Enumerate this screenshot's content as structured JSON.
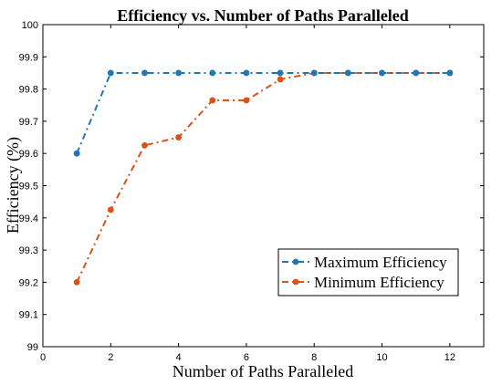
{
  "chart_data": {
    "type": "line",
    "title": "Efficiency vs. Number of Paths Paralleled",
    "xlabel": "Number of Paths Paralleled",
    "ylabel": "Efficiency (%)",
    "xlim": [
      0,
      13
    ],
    "ylim": [
      99,
      100
    ],
    "xticks": [
      0,
      2,
      4,
      6,
      8,
      10,
      12
    ],
    "yticks": [
      99,
      99.1,
      99.2,
      99.3,
      99.4,
      99.5,
      99.6,
      99.7,
      99.8,
      99.9,
      100
    ],
    "xtick_labels": [
      "0",
      "2",
      "4",
      "6",
      "8",
      "10",
      "12"
    ],
    "ytick_labels": [
      "99",
      "99.1",
      "99.2",
      "99.3",
      "99.4",
      "99.5",
      "99.6",
      "99.7",
      "99.8",
      "99.9",
      "100"
    ],
    "grid": false,
    "legend_position": "bottom-right",
    "x": [
      1,
      2,
      3,
      4,
      5,
      6,
      7,
      8,
      9,
      10,
      11,
      12
    ],
    "series": [
      {
        "name": "Maximum Efficiency",
        "color": "#1f77b4",
        "values": [
          99.6,
          99.85,
          99.85,
          99.85,
          99.85,
          99.85,
          99.85,
          99.85,
          99.85,
          99.85,
          99.85,
          99.85
        ]
      },
      {
        "name": "Minimum Efficiency",
        "color": "#d95319",
        "values": [
          99.2,
          99.425,
          99.625,
          99.65,
          99.765,
          99.765,
          99.83,
          99.85,
          99.85,
          99.85,
          99.85,
          99.85
        ]
      }
    ]
  }
}
